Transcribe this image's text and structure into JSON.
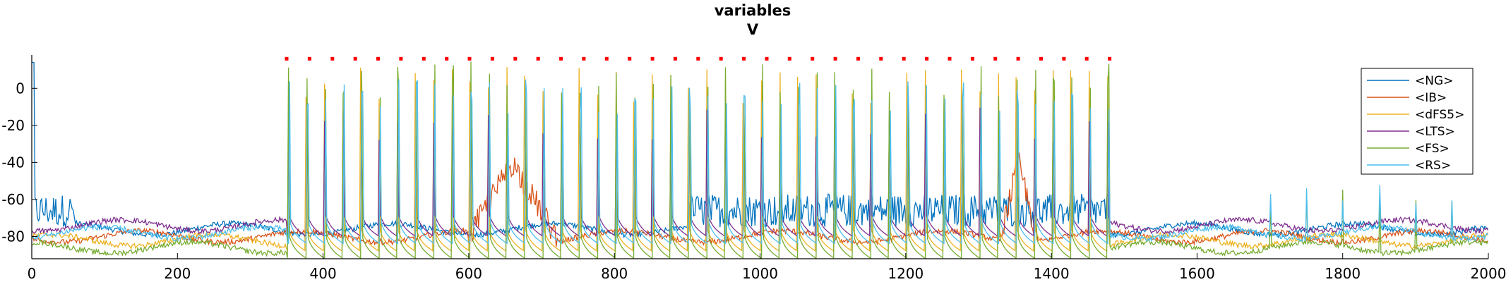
{
  "chart_data": {
    "type": "line",
    "title": "variables",
    "subtitle": "V",
    "xlabel": "",
    "ylabel": "",
    "xlim": [
      0,
      2000
    ],
    "ylim": [
      -92,
      18
    ],
    "x_ticks": [
      0,
      200,
      400,
      600,
      800,
      1000,
      1200,
      1400,
      1600,
      1800,
      2000
    ],
    "y_ticks": [
      0,
      -20,
      -40,
      -60,
      -80
    ],
    "grid": false,
    "legend_position": "top-right",
    "stimulus_marker": {
      "color": "#ff0000",
      "y": 16,
      "x_start": 350,
      "x_end": 1480,
      "count": 37
    },
    "stimulus_window": [
      350,
      1480
    ],
    "series": [
      {
        "name": "<NG>",
        "color": "#0072bd",
        "baseline": -76,
        "description_level": "spiking near -60..-50 in 0-60ms and 900-1480ms"
      },
      {
        "name": "<IB>",
        "color": "#d95319",
        "baseline": -80,
        "bursts_to": -30,
        "burst_windows": [
          [
            600,
            720
          ],
          [
            1330,
            1380
          ]
        ]
      },
      {
        "name": "<dFS5>",
        "color": "#edb120",
        "baseline": -82
      },
      {
        "name": "<LTS>",
        "color": "#7e2f8e",
        "baseline": -74
      },
      {
        "name": "<FS>",
        "color": "#77ac30",
        "baseline": -86,
        "spike_peak": 10,
        "spike_period_ms": 25
      },
      {
        "name": "<RS>",
        "color": "#4dbeee",
        "baseline": -78,
        "spike_peak": 6
      }
    ]
  },
  "legend": {
    "entries": [
      "<NG>",
      "<IB>",
      "<dFS5>",
      "<LTS>",
      "<FS>",
      "<RS>"
    ]
  }
}
